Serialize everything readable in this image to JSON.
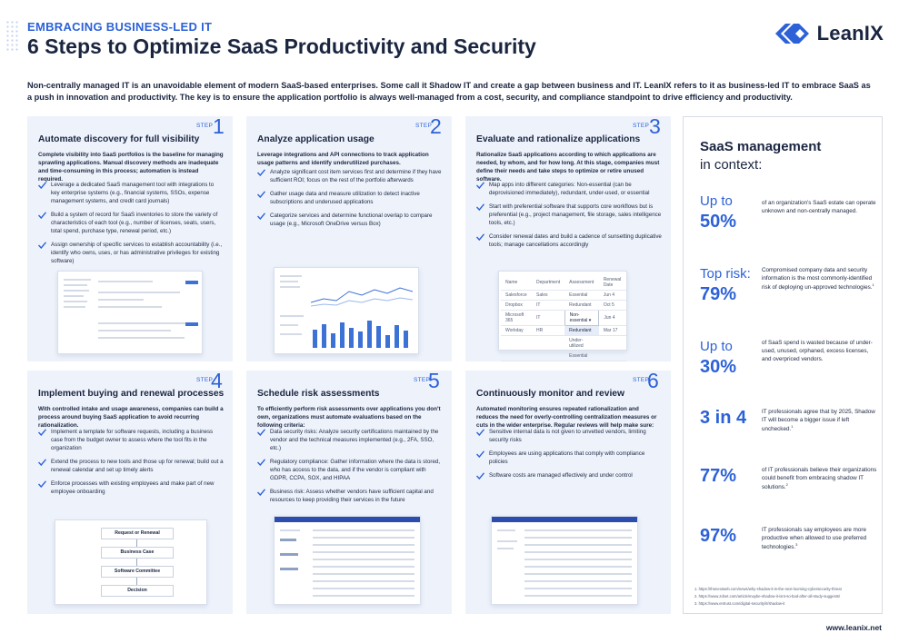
{
  "header": {
    "kicker": "EMBRACING BUSINESS-LED IT",
    "title": "6 Steps to Optimize SaaS Productivity and Security",
    "brand": "LeanIX",
    "brand_color": "#2c61d8"
  },
  "intro": "Non-centrally managed IT is an unavoidable element of modern SaaS-based enterprises. Some call it Shadow IT and create a gap between business and IT. LeanIX refers to it as business-led IT to embrace SaaS as a push in innovation and productivity. The key is to ensure the application portfolio is always well-managed from a cost, security, and compliance standpoint to drive efficiency and productivity.",
  "step_label": "STEP",
  "steps": [
    {
      "number": "1",
      "title": "Automate discovery for full visibility",
      "lead": "Complete visibility into SaaS portfolios is the baseline for managing sprawling applications. Manual discovery methods are inadequate and time-consuming in this process; automation is instead required.",
      "bullets": [
        "Leverage a dedicated SaaS management tool with integrations to key enterprise systems (e.g., financial systems, SSOs, expense management systems, and credit card journals)",
        "Build a system of record for SaaS inventories to store the variety of characteristics of each tool (e.g., number of licenses, seats, users, total spend, purchase type, renewal period, etc.)",
        "Assign ownership of specific services to establish accountability (i.e., identify who owns, uses, or has administrative privileges for existing software)"
      ]
    },
    {
      "number": "2",
      "title": "Analyze application usage",
      "lead": "Leverage integrations and API connections to track application usage patterns and identify underutilized purchases.",
      "bullets": [
        "Analyze significant cost item services first and determine if they have sufficient ROI; focus on the rest of the portfolio afterwards",
        "Gather usage data and measure utilization to detect inactive subscriptions and underused applications",
        "Categorize services and determine functional overlap to compare usage (e.g., Microsoft OneDrive versus Box)"
      ]
    },
    {
      "number": "3",
      "title": "Evaluate and rationalize applications",
      "lead": "Rationalize SaaS applications according to which applications are needed, by whom, and for how long. At this stage, companies must define their needs and take steps to optimize or retire unused software.",
      "bullets": [
        "Map apps into different categories: Non-essential (can be deprovisioned immediately), redundant, under-used, or essential",
        "Start with preferential software that supports core workflows but is preferential (e.g., project management, file storage, sales intelligence tools, etc.)",
        "Consider renewal dates and build a cadence of sunsetting duplicative tools; manage cancellations accordingly"
      ]
    },
    {
      "number": "4",
      "title": "Implement buying and renewal processes",
      "lead": "With controlled intake and usage awareness, companies can build a process around buying SaaS application to avoid recurring rationalization.",
      "bullets": [
        "Implement a template for software requests, including a business case from the budget owner to assess where the tool fits in the organization",
        "Extend the process to new tools and those up for renewal; build out a renewal calendar and set up timely alerts",
        "Enforce processes with existing employees and make part of new employee onboarding"
      ]
    },
    {
      "number": "5",
      "title": "Schedule risk assessments",
      "lead": "To efficiently perform risk assessments over applications you don't own, organizations must automate evaluations based on the following criteria:",
      "bullets": [
        "Data security risks: Analyze security certifications maintained by the vendor and the technical measures implemented (e.g., 2FA, SSO, etc.)",
        "Regulatory compliance: Gather information where the data is stored, who has access to the data, and if the vendor is compliant with GDPR, CCPA, SOX, and HIPAA",
        "Business risk: Assess whether vendors have sufficient capital and resources to keep providing their services in the future"
      ]
    },
    {
      "number": "6",
      "title": "Continuously monitor and review",
      "lead": "Automated monitoring ensures repeated rationalization and reduces the need for overly-controlling centralization measures or cuts in the wider enterprise. Regular reviews will help make sure:",
      "bullets": [
        "Sensitive internal data is not given to unvetted vendors, limiting security risks",
        "Employees are using applications that comply with compliance policies",
        "Software costs are managed effectively and under control"
      ]
    }
  ],
  "flowchart": [
    "Request or Renewal",
    "Business Case",
    "Software Committee",
    "Decision"
  ],
  "eval_table": {
    "headers": [
      "Name",
      "Department",
      "Assessment",
      "Renewal Date"
    ],
    "rows": [
      [
        "Salesforce",
        "Sales",
        "Essential",
        "Jun 4"
      ],
      [
        "Dropbox",
        "IT",
        "Redundant",
        "Oct 5"
      ],
      [
        "Microsoft 365",
        "IT",
        "Non-essential",
        "Jun 4"
      ],
      [
        "Workday",
        "HR",
        "Redundant",
        "Mar 17"
      ]
    ],
    "dropdown": [
      "Under-utilized",
      "Essential"
    ]
  },
  "sidebar": {
    "title": "SaaS management",
    "subtitle": "in context:",
    "stats": [
      {
        "prefix": "Up to",
        "value": "50%",
        "text": "of an organization's SaaS estate can operate unknown and non-centrally managed."
      },
      {
        "prefix": "Top risk:",
        "value": "79%",
        "text": "Compromised company data and security information is the most commonly-identified risk of deploying un-approved technologies.",
        "ref": "1"
      },
      {
        "prefix": "Up to",
        "value": "30%",
        "text": "of SaaS spend is wasted because of under-used, unused, orphaned, excess licenses, and overpriced vendors."
      },
      {
        "prefix": "",
        "value": "3 in 4",
        "text": "IT professionals agree that by 2025, Shadow IT will become a bigger issue if left unchecked.",
        "ref": "1"
      },
      {
        "prefix": "",
        "value": "77%",
        "text": "of IT professionals believe their organizations could benefit from embracing shadow IT solutions.",
        "ref": "2"
      },
      {
        "prefix": "",
        "value": "97%",
        "text": "IT professionals say employees are more productive when allowed to use preferred technologies.",
        "ref": "3"
      }
    ],
    "footnotes": [
      "1. https://thenextweb.com/news/why-shadow-it-is-the-next-looming-cybersecurity-threat",
      "2. https://www.zdnet.com/article/maybe-shadow-it-isnt-so-bad-after-all-study-suggests/",
      "3. https://www.entrust.com/digital-security/it/shadow-it"
    ]
  },
  "website": "www.leanix.net"
}
